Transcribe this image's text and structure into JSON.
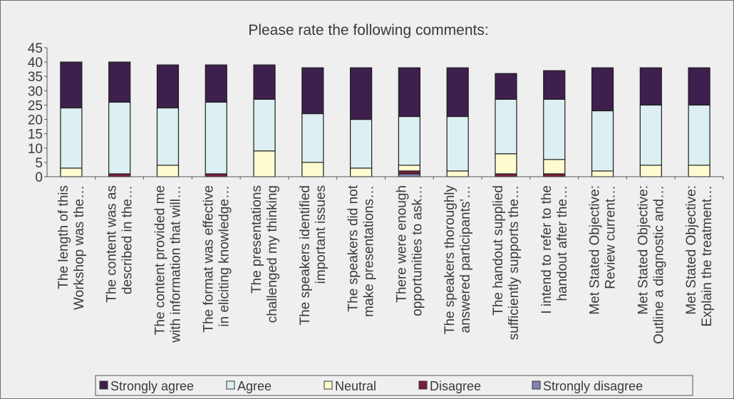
{
  "chart_data": {
    "type": "bar",
    "stacked": true,
    "title": "Please rate the following comments:",
    "ylim": [
      0,
      45
    ],
    "yticks": [
      0,
      5,
      10,
      15,
      20,
      25,
      30,
      35,
      40,
      45
    ],
    "grid": false,
    "legend_position": "bottom",
    "categories": [
      [
        "The length of this",
        "Workshop was the…"
      ],
      [
        "The content was as",
        "described in the…"
      ],
      [
        "The content provided me",
        "with information that will…"
      ],
      [
        "The format was effective",
        "in eliciting knowledge…"
      ],
      [
        "The presentations",
        "challenged my thinking"
      ],
      [
        "The speakers identified",
        "important issues"
      ],
      [
        "The speakers did not",
        "make presentations…"
      ],
      [
        "There were enough",
        "opportunities to ask…"
      ],
      [
        "The speakers thoroughly",
        "answered participants'…"
      ],
      [
        "The handout supplied",
        "sufficiently supports the…"
      ],
      [
        "I intend to refer to the",
        "handout after the…"
      ],
      [
        "Met Stated Objective:",
        "Review current…"
      ],
      [
        "Met Stated Objective:",
        "Outline a diagnostic and…"
      ],
      [
        "Met Stated Objective:",
        "Explain the treatment…"
      ]
    ],
    "series": [
      {
        "name": "Strongly disagree",
        "color": "#7f84b4",
        "values": [
          0,
          0,
          0,
          0,
          0,
          0,
          0,
          1,
          0,
          0,
          0,
          0,
          0,
          0
        ]
      },
      {
        "name": "Disagree",
        "color": "#7a1f3d",
        "values": [
          0,
          1,
          0,
          1,
          0,
          0,
          0,
          1,
          0,
          1,
          1,
          0,
          0,
          0
        ]
      },
      {
        "name": "Neutral",
        "color": "#fffbd0",
        "values": [
          3,
          0,
          4,
          0,
          9,
          5,
          3,
          2,
          2,
          7,
          5,
          2,
          4,
          4
        ]
      },
      {
        "name": "Agree",
        "color": "#dcf0f3",
        "values": [
          21,
          25,
          20,
          25,
          18,
          17,
          17,
          17,
          19,
          19,
          21,
          21,
          21,
          21
        ]
      },
      {
        "name": "Strongly agree",
        "color": "#3e1f4d",
        "values": [
          16,
          14,
          15,
          13,
          12,
          16,
          18,
          17,
          17,
          9,
          10,
          15,
          13,
          13
        ]
      }
    ],
    "legend_order": [
      "Strongly agree",
      "Agree",
      "Neutral",
      "Disagree",
      "Strongly disagree"
    ]
  }
}
